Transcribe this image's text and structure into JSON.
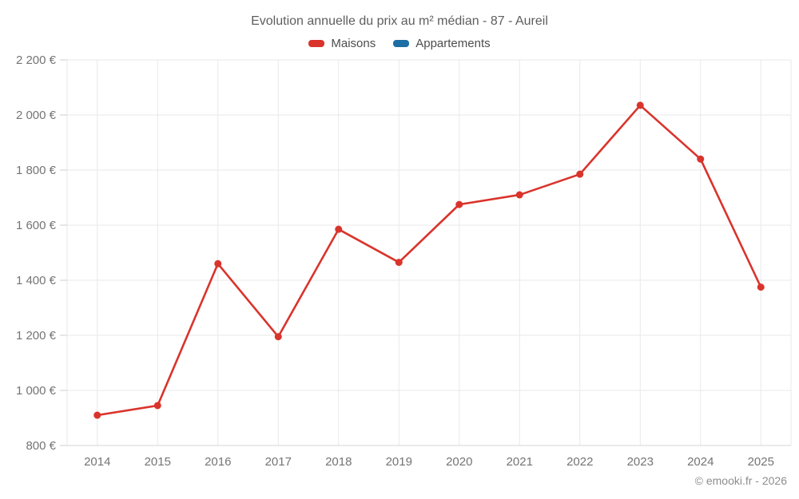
{
  "chart": {
    "title": "Evolution annuelle du prix au m² médian - 87 - Aureil",
    "footer": "© emooki.fr - 2026"
  },
  "chart_data": {
    "type": "line",
    "title": "Evolution annuelle du prix au m² médian - 87 - Aureil",
    "categories": [
      "2014",
      "2015",
      "2016",
      "2017",
      "2018",
      "2019",
      "2020",
      "2021",
      "2022",
      "2023",
      "2024",
      "2025"
    ],
    "series": [
      {
        "name": "Maisons",
        "color": "#d9342c",
        "values": [
          910,
          945,
          1460,
          1195,
          1585,
          1465,
          1675,
          1710,
          1785,
          2035,
          1840,
          1375
        ]
      },
      {
        "name": "Appartements",
        "color": "#1c6ea4",
        "values": []
      }
    ],
    "ylim": [
      800,
      2200
    ],
    "ytick_step": 200,
    "ytick_labels": [
      "800 €",
      "1 000 €",
      "1 200 €",
      "1 400 €",
      "1 600 €",
      "1 800 €",
      "2 000 €",
      "2 200 €"
    ],
    "xlabel": "",
    "ylabel": "",
    "grid": true,
    "legend_position": "top"
  }
}
